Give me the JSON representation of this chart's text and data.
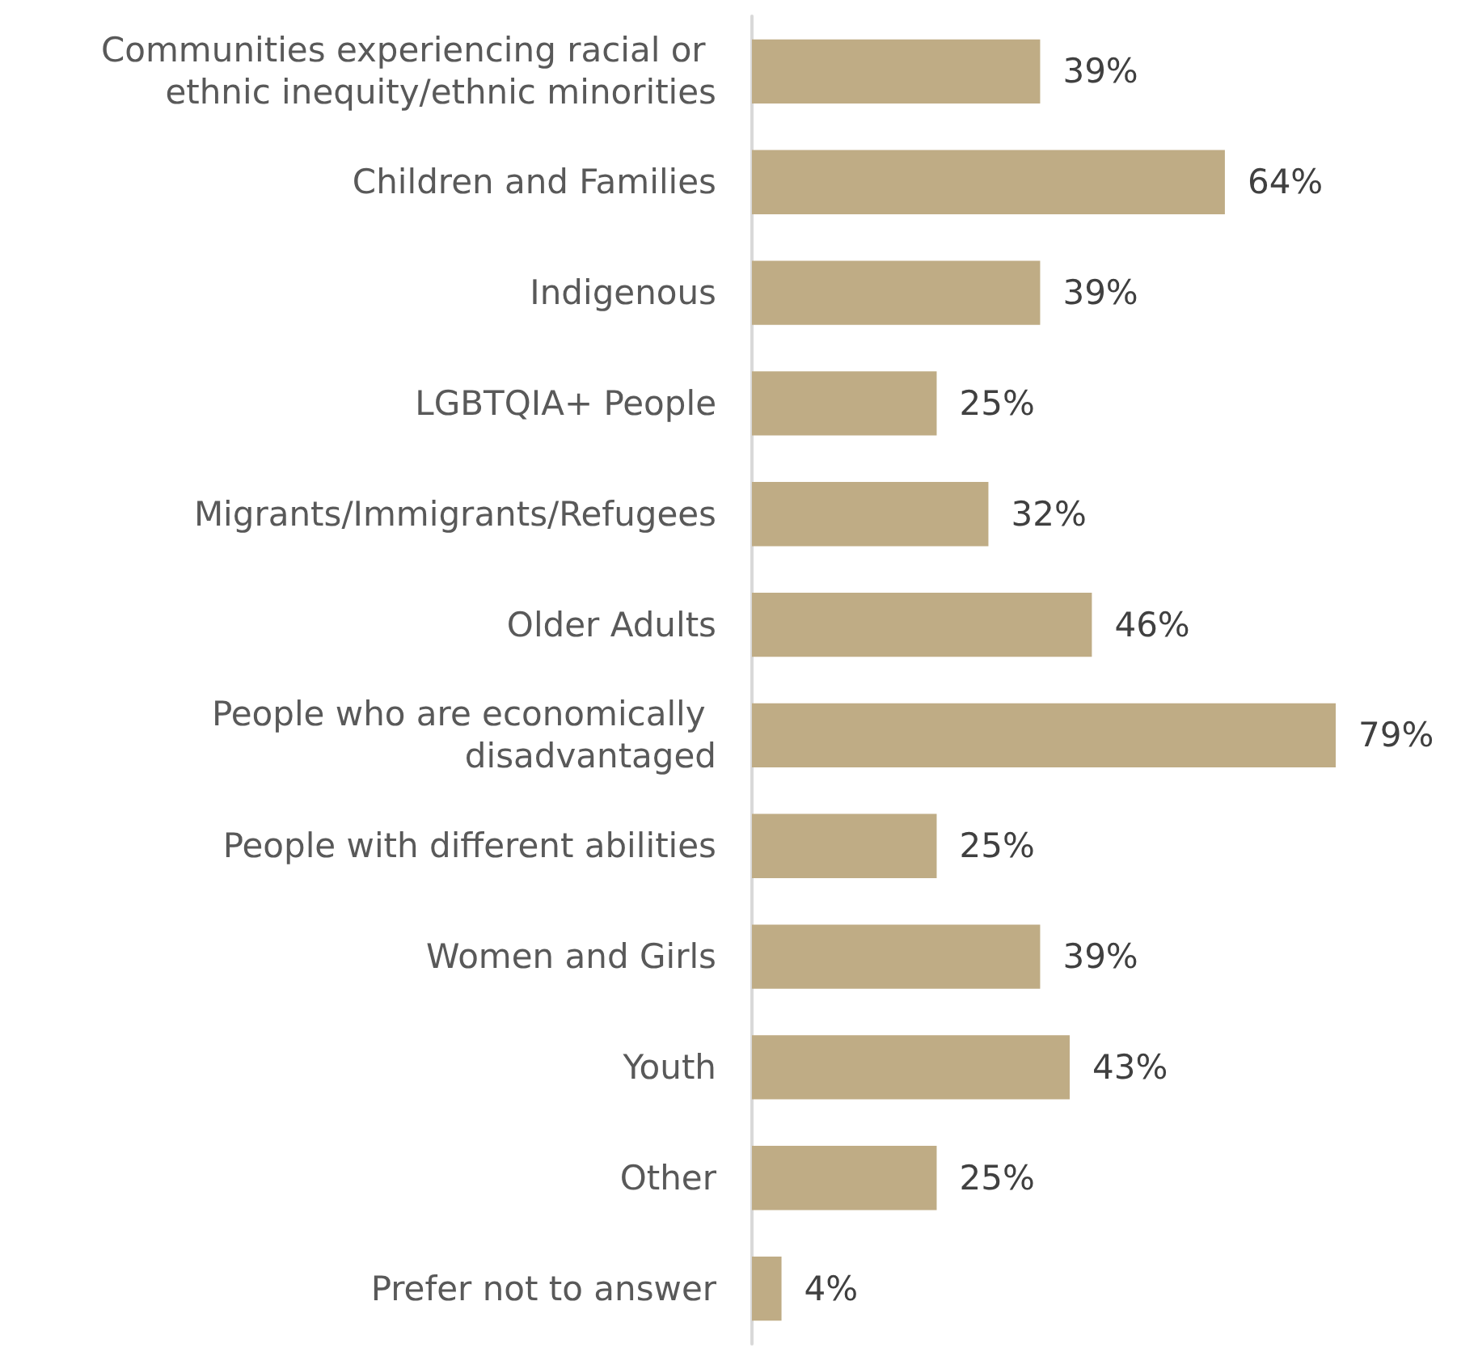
{
  "chart_data": {
    "type": "bar",
    "orientation": "horizontal",
    "categories": [
      "Communities experiencing racial or ethnic inequity/ethnic minorities",
      "Children and Families",
      "Indigenous",
      "LGBTQIA+ People",
      "Migrants/Immigrants/Refugees",
      "Older Adults",
      "People who are economically disadvantaged",
      "People with different abilities",
      "Women and Girls",
      "Youth",
      "Other",
      "Prefer not to answer"
    ],
    "values": [
      39,
      64,
      39,
      25,
      32,
      46,
      79,
      25,
      39,
      43,
      25,
      4
    ],
    "value_labels": [
      "39%",
      "64%",
      "39%",
      "25%",
      "32%",
      "46%",
      "79%",
      "25%",
      "39%",
      "43%",
      "25%",
      "4%"
    ],
    "color": "#bfac85"
  }
}
